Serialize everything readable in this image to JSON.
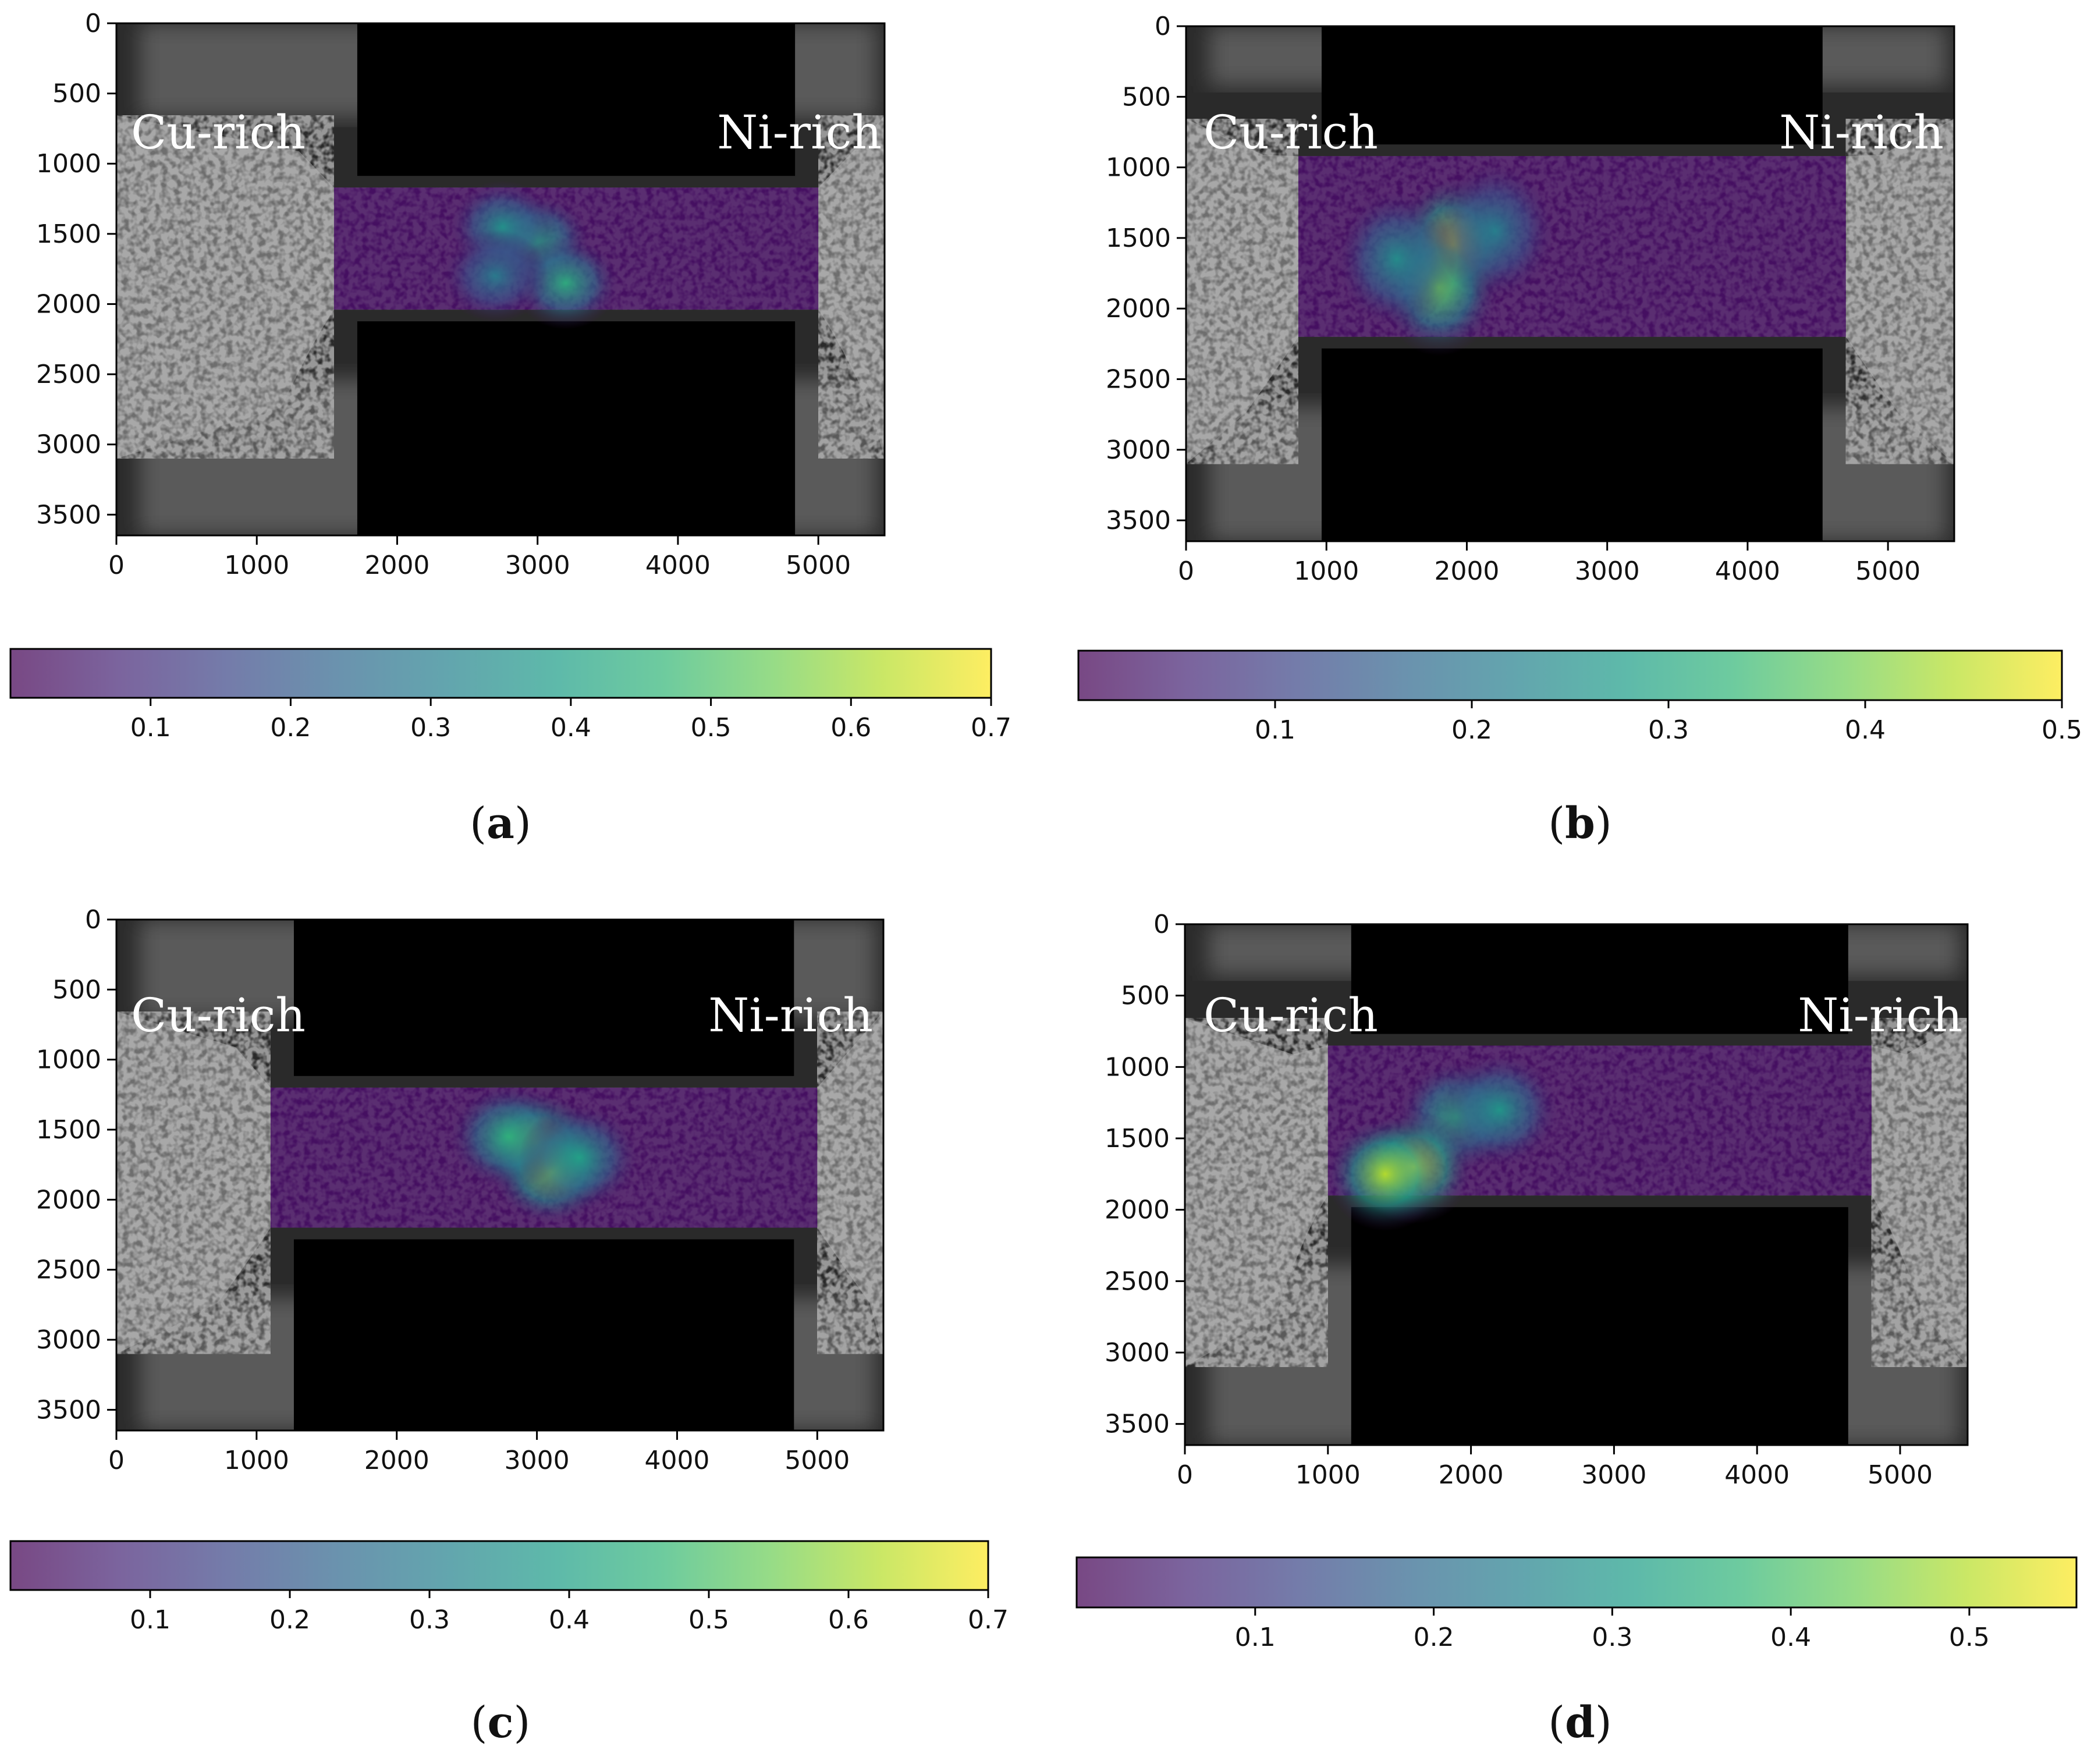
{
  "chart_data": [
    {
      "type": "heatmap",
      "panel": "a",
      "caption_letter": "a",
      "region_labels": [
        "Cu-rich",
        "Ni-rich"
      ],
      "xlim": [
        0,
        5472
      ],
      "ylim": [
        3648,
        0
      ],
      "x_ticks": [
        0,
        1000,
        2000,
        3000,
        4000,
        5000
      ],
      "y_ticks": [
        0,
        500,
        1000,
        1500,
        2000,
        2500,
        3000,
        3500
      ],
      "specimen_gauge": {
        "x_start": 1550,
        "x_end": 5000,
        "y_top": 1170,
        "y_bottom": 2040
      },
      "hotspots": [
        {
          "x": 3000,
          "y": 1550,
          "value": 0.42
        },
        {
          "x": 2750,
          "y": 1450,
          "value": 0.36
        },
        {
          "x": 3200,
          "y": 1850,
          "value": 0.44
        },
        {
          "x": 2700,
          "y": 1800,
          "value": 0.3
        }
      ],
      "colorbar": {
        "min": 0,
        "max": 0.7,
        "ticks": [
          0.1,
          0.2,
          0.3,
          0.4,
          0.5,
          0.6,
          0.7
        ]
      }
    },
    {
      "type": "heatmap",
      "panel": "b",
      "caption_letter": "b",
      "region_labels": [
        "Cu-rich",
        "Ni-rich"
      ],
      "xlim": [
        0,
        5472
      ],
      "ylim": [
        3648,
        0
      ],
      "x_ticks": [
        0,
        1000,
        2000,
        3000,
        4000,
        5000
      ],
      "y_ticks": [
        0,
        500,
        1000,
        1500,
        2000,
        2500,
        3000,
        3500
      ],
      "specimen_gauge": {
        "x_start": 800,
        "x_end": 4700,
        "y_top": 920,
        "y_bottom": 2200
      },
      "hotspots": [
        {
          "x": 1900,
          "y": 1550,
          "value": 0.48
        },
        {
          "x": 1800,
          "y": 1850,
          "value": 0.38
        },
        {
          "x": 1500,
          "y": 1650,
          "value": 0.25
        },
        {
          "x": 2200,
          "y": 1450,
          "value": 0.22
        }
      ],
      "colorbar": {
        "min": 0,
        "max": 0.5,
        "ticks": [
          0.1,
          0.2,
          0.3,
          0.4,
          0.5
        ]
      }
    },
    {
      "type": "heatmap",
      "panel": "c",
      "caption_letter": "c",
      "region_labels": [
        "Cu-rich",
        "Ni-rich"
      ],
      "xlim": [
        0,
        5472
      ],
      "ylim": [
        3648,
        0
      ],
      "x_ticks": [
        0,
        1000,
        2000,
        3000,
        4000,
        5000
      ],
      "y_ticks": [
        0,
        500,
        1000,
        1500,
        2000,
        2500,
        3000,
        3500
      ],
      "specimen_gauge": {
        "x_start": 1100,
        "x_end": 5000,
        "y_top": 1200,
        "y_bottom": 2200
      },
      "hotspots": [
        {
          "x": 3000,
          "y": 1600,
          "value": 0.62
        },
        {
          "x": 3100,
          "y": 1800,
          "value": 0.58
        },
        {
          "x": 2800,
          "y": 1550,
          "value": 0.45
        },
        {
          "x": 3300,
          "y": 1700,
          "value": 0.4
        }
      ],
      "colorbar": {
        "min": 0,
        "max": 0.7,
        "ticks": [
          0.1,
          0.2,
          0.3,
          0.4,
          0.5,
          0.6,
          0.7
        ]
      }
    },
    {
      "type": "heatmap",
      "panel": "d",
      "caption_letter": "d",
      "region_labels": [
        "Cu-rich",
        "Ni-rich"
      ],
      "xlim": [
        0,
        5472
      ],
      "ylim": [
        3648,
        0
      ],
      "x_ticks": [
        0,
        1000,
        2000,
        3000,
        4000,
        5000
      ],
      "y_ticks": [
        0,
        500,
        1000,
        1500,
        2000,
        2500,
        3000,
        3500
      ],
      "specimen_gauge": {
        "x_start": 1000,
        "x_end": 4800,
        "y_top": 850,
        "y_bottom": 1900
      },
      "hotspots": [
        {
          "x": 1900,
          "y": 1350,
          "value": 0.35
        },
        {
          "x": 1600,
          "y": 1700,
          "value": 0.55
        },
        {
          "x": 1400,
          "y": 1750,
          "value": 0.5
        },
        {
          "x": 2200,
          "y": 1300,
          "value": 0.3
        }
      ],
      "colorbar": {
        "min": 0,
        "max": 0.56,
        "ticks": [
          0.1,
          0.2,
          0.3,
          0.4,
          0.5
        ]
      }
    }
  ],
  "colors": {
    "viridis": [
      "#440154",
      "#482878",
      "#3e4989",
      "#31688e",
      "#26828e",
      "#1f9e89",
      "#35b779",
      "#6ece58",
      "#b5de2b",
      "#fde725"
    ],
    "background_dark": "#2a2a2a",
    "speckle_light": "#bdbdbd",
    "speckle_dark": "#161616",
    "grip": "#000000"
  }
}
